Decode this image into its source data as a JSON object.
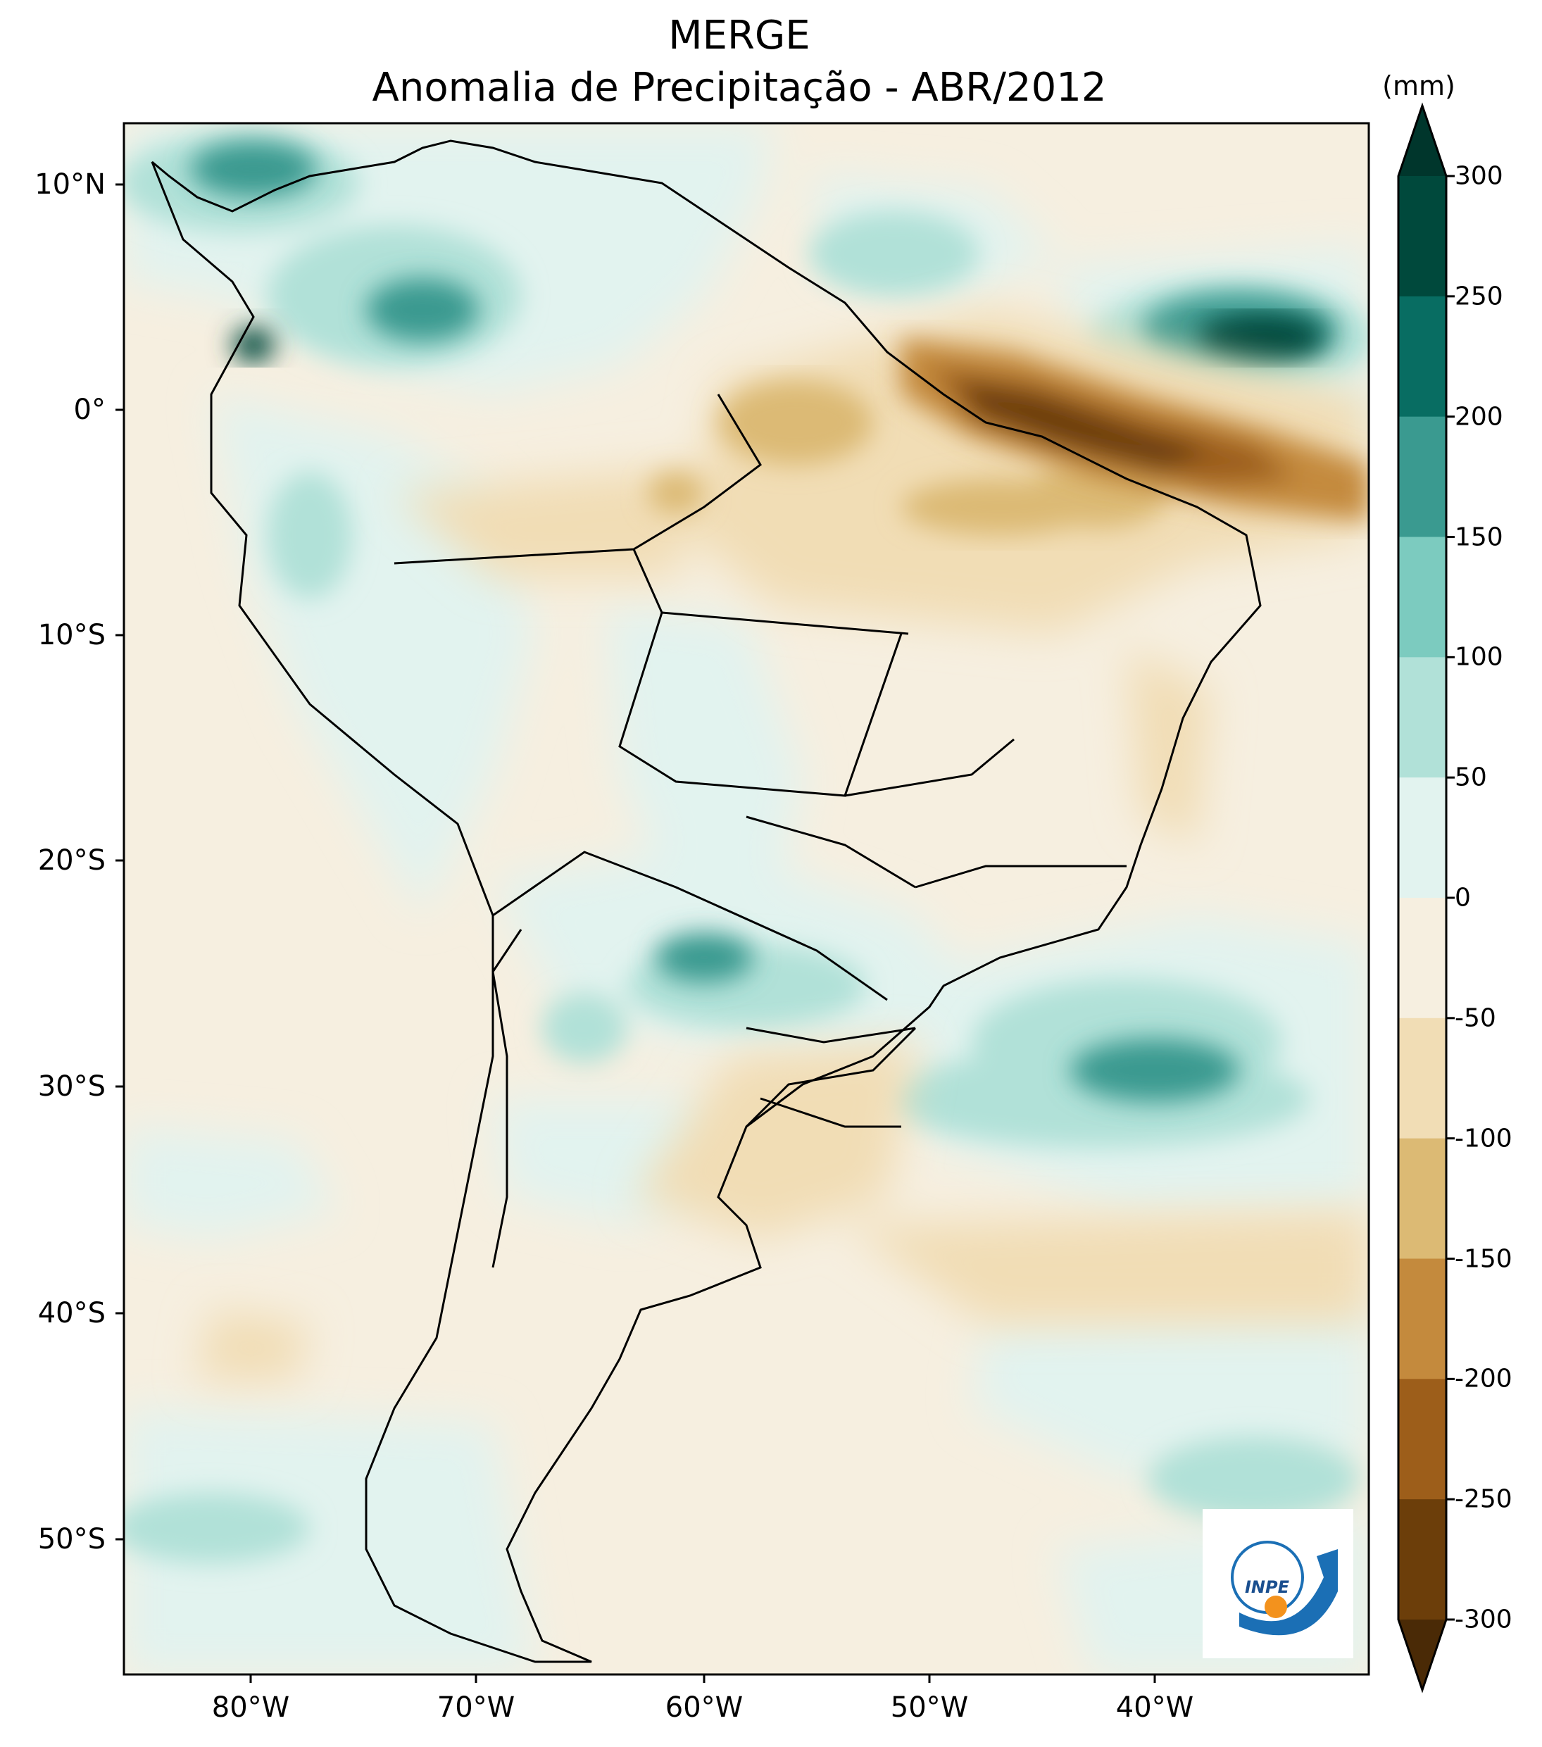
{
  "title": "MERGE",
  "subtitle": "Anomalia de Precipitação - ABR/2012",
  "colorbar": {
    "unit": "(mm)",
    "ticks": [
      "300",
      "250",
      "200",
      "150",
      "100",
      "50",
      "0",
      "-50",
      "-100",
      "-150",
      "-200",
      "-250",
      "-300"
    ],
    "levels": [
      300,
      250,
      200,
      150,
      100,
      50,
      0,
      -50,
      -100,
      -150,
      -200,
      -250,
      -300
    ],
    "colors_top_to_bottom": [
      "#00493c",
      "#086d62",
      "#3a9a90",
      "#7ccbbf",
      "#b1e1d8",
      "#e2f3ef",
      "#f6efe0",
      "#f1ddb5",
      "#dcba74",
      "#c48a3d",
      "#9d5e1a",
      "#6c3e0a"
    ],
    "extend_top_color": "#00362c",
    "extend_bottom_color": "#4a2a06"
  },
  "axes": {
    "lat_labels": [
      "10°N",
      "0°",
      "10°S",
      "20°S",
      "30°S",
      "40°S",
      "50°S"
    ],
    "lon_labels": [
      "80°W",
      "70°W",
      "60°W",
      "50°W",
      "40°W"
    ]
  },
  "logo": {
    "text": "INPE"
  }
}
